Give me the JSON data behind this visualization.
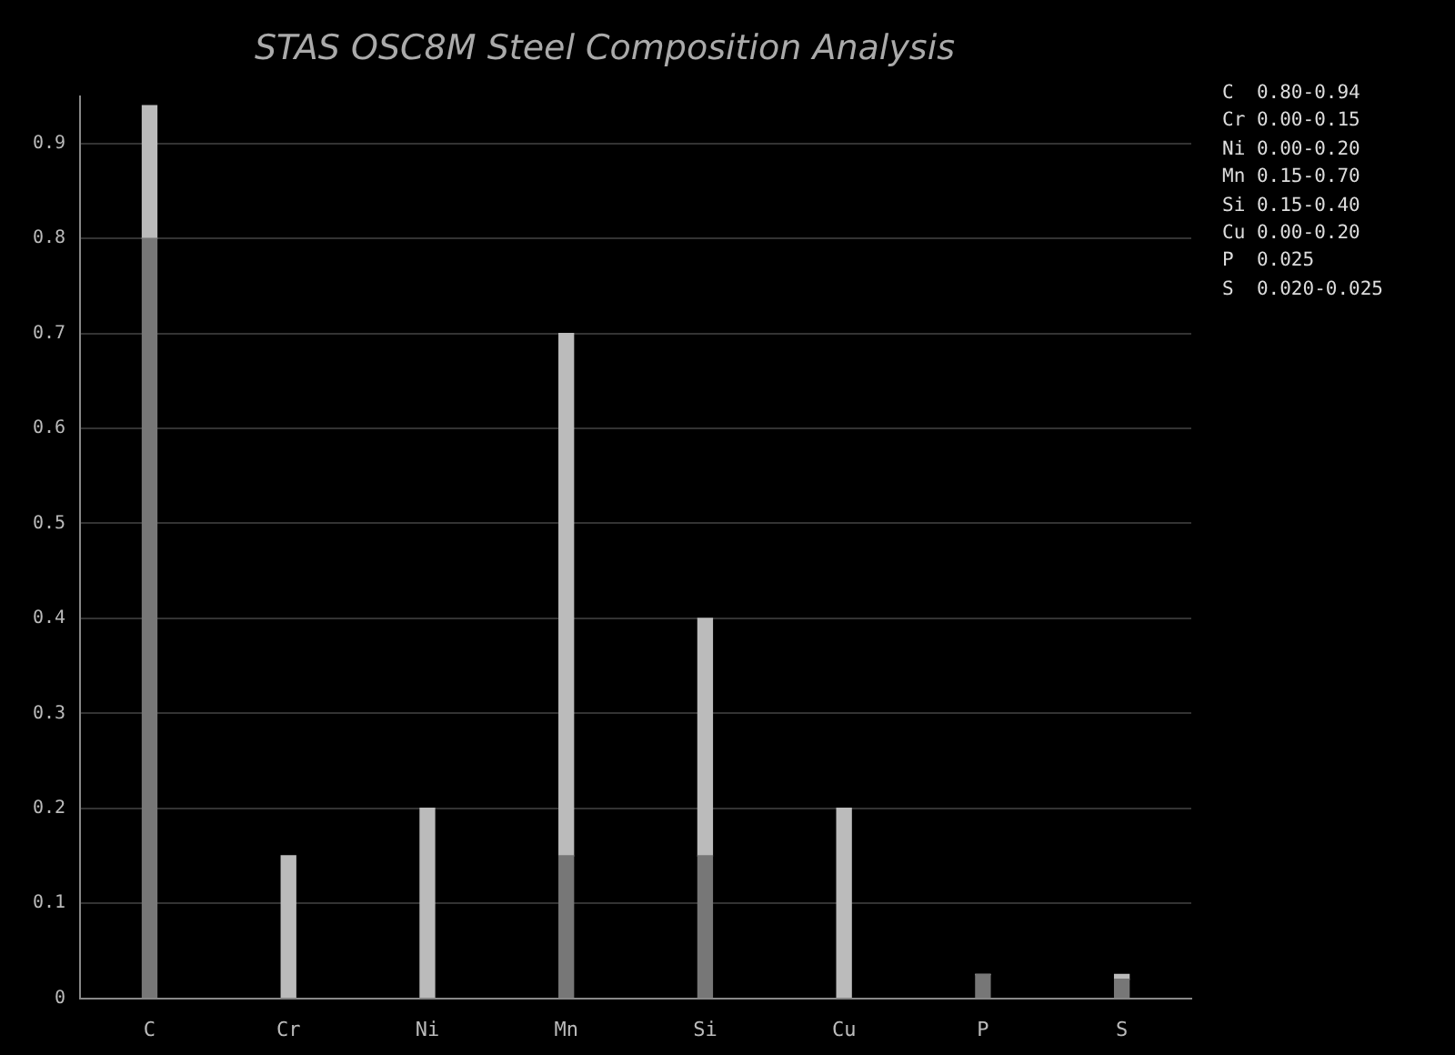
{
  "chart_data": {
    "type": "bar",
    "title": "STAS OSC8M Steel Composition Analysis",
    "stacked": true,
    "categories": [
      "C",
      "Cr",
      "Ni",
      "Mn",
      "Si",
      "Cu",
      "P",
      "S"
    ],
    "series": [
      {
        "color": "#777777",
        "values": [
          0.8,
          0,
          0,
          0.15,
          0.15,
          0,
          0.025,
          0.02
        ]
      },
      {
        "color": "#bbbbbb",
        "values": [
          0.14,
          0.15,
          0.2,
          0.55,
          0.25,
          0.2,
          0,
          0.005
        ]
      }
    ],
    "ylim": [
      0,
      0.95
    ],
    "yticks": [
      0,
      0.1,
      0.2,
      0.3,
      0.4,
      0.5,
      0.6,
      0.7,
      0.8,
      0.9
    ],
    "grid": "y",
    "annotations": [
      "C  0.80-0.94",
      "Cr 0.00-0.15",
      "Ni 0.00-0.20",
      "Mn 0.15-0.70",
      "Si 0.15-0.40",
      "Cu 0.00-0.20",
      "P  0.025",
      "S  0.020-0.025"
    ]
  }
}
